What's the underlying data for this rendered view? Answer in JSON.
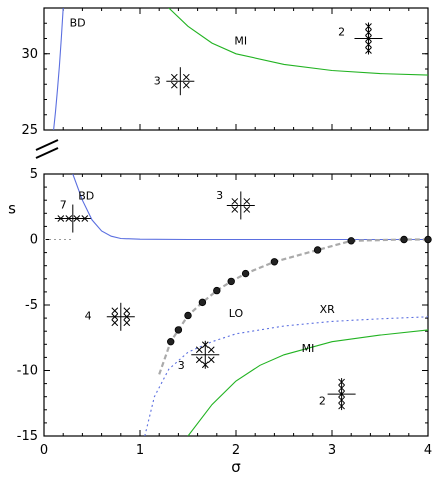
{
  "chart_data": [
    {
      "type": "line",
      "panel": "upper",
      "xlim": [
        0,
        4
      ],
      "ylim": [
        25,
        33
      ],
      "yticks": [
        "25",
        "30"
      ],
      "colors": {
        "BD": "#5b6fe0",
        "MI": "#22b322"
      },
      "series": [
        {
          "name": "BD",
          "style": "solid",
          "x": [
            0.1,
            0.12,
            0.14,
            0.16,
            0.18,
            0.2
          ],
          "y": [
            25,
            26.2,
            27.6,
            29.2,
            31.0,
            33
          ]
        },
        {
          "name": "MI",
          "style": "solid",
          "x": [
            1.3,
            1.5,
            1.75,
            2.0,
            2.5,
            3.0,
            3.5,
            4.0
          ],
          "y": [
            33,
            31.8,
            30.7,
            30.0,
            29.3,
            28.9,
            28.7,
            28.6
          ]
        }
      ],
      "annotations": [
        {
          "text": "BD",
          "x": 0.35,
          "y": 31.8
        },
        {
          "text": "MI",
          "x": 2.05,
          "y": 30.6
        },
        {
          "text": "3",
          "x": 1.18,
          "y": 28.0
        },
        {
          "text": "2",
          "x": 3.1,
          "y": 31.2
        }
      ]
    },
    {
      "type": "line",
      "panel": "lower",
      "xlabel": "σ",
      "ylabel": "s",
      "xlim": [
        0,
        4
      ],
      "ylim": [
        -15,
        5
      ],
      "xticks": [
        "0",
        "1",
        "2",
        "3",
        "4"
      ],
      "yticks": [
        "-15",
        "-10",
        "-5",
        "0",
        "5"
      ],
      "colors": {
        "BD": "#5b6fe0",
        "MI": "#22b322",
        "XR": "#5b6fe0",
        "LO": "#aaaaaa",
        "zero": "#999999"
      },
      "series": [
        {
          "name": "BD",
          "style": "solid",
          "x": [
            0.3,
            0.4,
            0.5,
            0.6,
            0.7,
            0.8,
            1.0,
            1.5,
            2.0,
            3.0,
            4.0
          ],
          "y": [
            5,
            3.0,
            1.5,
            0.65,
            0.25,
            0.08,
            0.02,
            0.0,
            0.0,
            0.0,
            0.0
          ]
        },
        {
          "name": "zero",
          "style": "dotted",
          "x": [
            0,
            0.3
          ],
          "y": [
            0,
            0
          ]
        },
        {
          "name": "MI",
          "style": "solid",
          "x": [
            1.5,
            1.75,
            2.0,
            2.25,
            2.5,
            3.0,
            3.5,
            4.0
          ],
          "y": [
            -15,
            -12.6,
            -10.8,
            -9.6,
            -8.8,
            -7.8,
            -7.3,
            -6.9
          ]
        },
        {
          "name": "XR",
          "style": "dotted",
          "x": [
            1.05,
            1.15,
            1.3,
            1.5,
            1.75,
            2.0,
            2.5,
            3.0,
            3.5,
            4.0
          ],
          "y": [
            -15,
            -12.0,
            -9.9,
            -8.6,
            -7.8,
            -7.2,
            -6.6,
            -6.25,
            -6.05,
            -5.9
          ]
        },
        {
          "name": "LO",
          "style": "dashed",
          "x": [
            1.2,
            1.32,
            1.4,
            1.5,
            1.65,
            1.8,
            1.95,
            2.1,
            2.4,
            2.85,
            3.2,
            3.75,
            4.0
          ],
          "y": [
            -10.3,
            -7.8,
            -6.9,
            -5.8,
            -4.8,
            -3.9,
            -3.2,
            -2.6,
            -1.7,
            -0.8,
            -0.1,
            0.0,
            0.0
          ]
        }
      ],
      "points": {
        "name": "LO",
        "x": [
          1.32,
          1.4,
          1.5,
          1.65,
          1.8,
          1.95,
          2.1,
          2.4,
          2.85,
          3.2,
          3.75,
          4.0
        ],
        "y": [
          -7.8,
          -6.9,
          -5.8,
          -4.8,
          -3.9,
          -3.2,
          -2.6,
          -1.7,
          -0.8,
          -0.1,
          0.0,
          0.0
        ]
      },
      "annotations": [
        {
          "text": "BD",
          "x": 0.44,
          "y": 3.05
        },
        {
          "text": "7",
          "x": 0.2,
          "y": 2.35
        },
        {
          "text": "3",
          "x": 1.83,
          "y": 3.1
        },
        {
          "text": "4",
          "x": 0.46,
          "y": -6.1
        },
        {
          "text": "LO",
          "x": 2.0,
          "y": -5.9
        },
        {
          "text": "XR",
          "x": 2.95,
          "y": -5.6
        },
        {
          "text": "3",
          "x": 1.43,
          "y": -9.9
        },
        {
          "text": "MI",
          "x": 2.75,
          "y": -8.6
        },
        {
          "text": "2",
          "x": 2.9,
          "y": -12.6
        }
      ]
    }
  ]
}
